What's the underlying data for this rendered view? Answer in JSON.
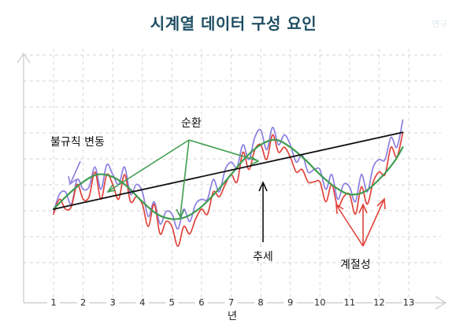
{
  "title": "시계열 데이터 구성 요인",
  "watermark": "연구",
  "chart_data": {
    "type": "line",
    "xlabel": "년",
    "x_ticks": [
      "1",
      "2",
      "3",
      "4",
      "5",
      "6",
      "7",
      "8",
      "9",
      "10",
      "11",
      "12",
      "13"
    ],
    "xlim": [
      1,
      13
    ],
    "grid": true,
    "series": [
      {
        "name": "",
        "color": "#8a7fe0",
        "x": [
          1,
          1.2,
          1.4,
          1.6,
          1.8,
          2,
          2.2,
          2.4,
          2.6,
          2.8,
          3,
          3.2,
          3.4,
          3.6,
          3.8,
          4,
          4.2,
          4.4,
          4.6,
          4.8,
          5,
          5.2,
          5.4,
          5.6,
          5.8,
          6,
          6.2,
          6.4,
          6.6,
          6.8,
          7,
          7.2,
          7.4,
          7.6,
          7.8,
          8,
          8.2,
          8.4,
          8.6,
          8.8,
          9,
          9.2,
          9.4,
          9.6,
          9.8,
          10,
          10.2,
          10.4,
          10.6,
          10.8,
          11,
          11.2,
          11.4,
          11.6,
          11.8,
          12,
          12.2,
          12.4,
          12.6,
          12.8
        ],
        "y": [
          2.6,
          3.3,
          3.4,
          2.9,
          3.9,
          3.5,
          3.6,
          4.4,
          3.5,
          4.5,
          4.1,
          3.7,
          4.4,
          3.3,
          3.7,
          3.4,
          2.4,
          3.0,
          2.1,
          2.6,
          2.5,
          1.9,
          2.7,
          2.2,
          2.9,
          3.1,
          3.1,
          3.9,
          3.4,
          4.3,
          4.6,
          4.4,
          5.3,
          4.7,
          5.6,
          5.9,
          5.1,
          6.0,
          5.3,
          5.7,
          5.3,
          4.6,
          4.9,
          4.2,
          4.3,
          4.3,
          3.5,
          4.1,
          3.1,
          3.7,
          3.6,
          3.0,
          4.1,
          3.4,
          4.4,
          4.7,
          4.7,
          5.6,
          5.2,
          6.3
        ]
      },
      {
        "name": "",
        "color": "#e0433b",
        "x": [
          1,
          1.2,
          1.4,
          1.6,
          1.8,
          2,
          2.2,
          2.4,
          2.6,
          2.8,
          3,
          3.2,
          3.4,
          3.6,
          3.8,
          4,
          4.2,
          4.4,
          4.6,
          4.8,
          5,
          5.2,
          5.4,
          5.6,
          5.8,
          6,
          6.2,
          6.4,
          6.6,
          6.8,
          7,
          7.2,
          7.4,
          7.6,
          7.8,
          8,
          8.2,
          8.4,
          8.6,
          8.8,
          9,
          9.2,
          9.4,
          9.6,
          9.8,
          10,
          10.2,
          10.4,
          10.6,
          10.8,
          11,
          11.2,
          11.4,
          11.6,
          11.8,
          12,
          12.2,
          12.4,
          12.6,
          12.8
        ],
        "y": [
          2.5,
          3.1,
          2.7,
          2.8,
          3.7,
          3.1,
          3.2,
          4.2,
          3.1,
          4.1,
          3.7,
          3.1,
          4.1,
          3.0,
          3.2,
          2.9,
          2.0,
          2.9,
          1.7,
          2.2,
          2.0,
          1.2,
          2.0,
          1.7,
          2.3,
          2.7,
          2.5,
          3.4,
          3.2,
          3.7,
          4.1,
          3.8,
          5.0,
          4.3,
          5.1,
          5.3,
          4.7,
          5.7,
          5.0,
          5.2,
          4.8,
          4.2,
          4.3,
          3.8,
          3.8,
          3.8,
          3.0,
          3.7,
          2.8,
          3.2,
          3.3,
          2.5,
          3.6,
          2.9,
          3.8,
          4.2,
          4.1,
          5.2,
          4.8,
          5.8
        ]
      },
      {
        "name": "",
        "color": "#3f9d4f",
        "x": [
          1,
          1.5,
          2,
          2.5,
          3,
          3.5,
          4,
          4.5,
          5,
          5.5,
          6,
          6.5,
          7,
          7.5,
          8,
          8.5,
          9,
          9.5,
          10,
          10.5,
          11,
          11.5,
          12,
          12.5,
          12.8
        ],
        "y": [
          2.7,
          3.3,
          3.8,
          4.1,
          4.0,
          3.6,
          3.0,
          2.5,
          2.3,
          2.4,
          2.8,
          3.4,
          4.1,
          4.8,
          5.3,
          5.5,
          5.2,
          4.7,
          4.1,
          3.6,
          3.3,
          3.4,
          3.9,
          4.6,
          5.2
        ]
      },
      {
        "name": "",
        "color": "#111111",
        "x": [
          1,
          12.8
        ],
        "y": [
          2.7,
          5.8
        ]
      }
    ],
    "annotations": [
      {
        "label": "불규칙 변동",
        "color": "#8a7fe0"
      },
      {
        "label": "순환",
        "color": "#3f9d4f"
      },
      {
        "label": "추세",
        "color": "#111111"
      },
      {
        "label": "계절성",
        "color": "#e0433b"
      }
    ]
  }
}
